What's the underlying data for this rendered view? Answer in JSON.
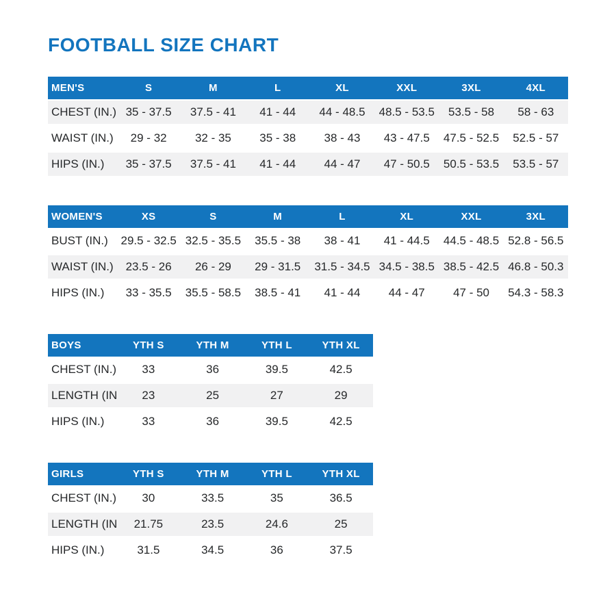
{
  "page": {
    "title": "FOOTBALL SIZE CHART"
  },
  "colors": {
    "accent_blue": "#1375be",
    "stripe_gray": "#f1f1f2",
    "header_text": "#ffffff",
    "body_text": "#26282a"
  },
  "tables": [
    {
      "id": "mens",
      "header": [
        "MEN'S",
        "S",
        "M",
        "L",
        "XL",
        "XXL",
        "3XL",
        "4XL"
      ],
      "rows": [
        {
          "label": "CHEST (IN.)",
          "values": [
            "35 - 37.5",
            "37.5 - 41",
            "41 - 44",
            "44 - 48.5",
            "48.5 - 53.5",
            "53.5 - 58",
            "58 - 63"
          ]
        },
        {
          "label": "WAIST (IN.)",
          "values": [
            "29 - 32",
            "32 - 35",
            "35 - 38",
            "38 - 43",
            "43 - 47.5",
            "47.5 - 52.5",
            "52.5 - 57"
          ]
        },
        {
          "label": "HIPS (IN.)",
          "values": [
            "35 - 37.5",
            "37.5 - 41",
            "41 - 44",
            "44 - 47",
            "47 - 50.5",
            "50.5 - 53.5",
            "53.5 - 57"
          ]
        }
      ]
    },
    {
      "id": "womens",
      "header": [
        "WOMEN'S",
        "XS",
        "S",
        "M",
        "L",
        "XL",
        "XXL",
        "3XL"
      ],
      "rows": [
        {
          "label": "BUST (IN.)",
          "values": [
            "29.5 - 32.5",
            "32.5 - 35.5",
            "35.5 - 38",
            "38 - 41",
            "41 - 44.5",
            "44.5 - 48.5",
            "52.8 - 56.5"
          ]
        },
        {
          "label": "WAIST (IN.)",
          "values": [
            "23.5 - 26",
            "26 - 29",
            "29 - 31.5",
            "31.5 - 34.5",
            "34.5 - 38.5",
            "38.5 - 42.5",
            "46.8 - 50.3"
          ]
        },
        {
          "label": "HIPS (IN.)",
          "values": [
            "33 - 35.5",
            "35.5 - 58.5",
            "38.5 - 41",
            "41 - 44",
            "44 - 47",
            "47 - 50",
            "54.3 - 58.3"
          ]
        }
      ]
    },
    {
      "id": "boys",
      "header": [
        "BOYS",
        "YTH S",
        "YTH M",
        "YTH L",
        "YTH XL"
      ],
      "rows": [
        {
          "label": "CHEST (IN.)",
          "values": [
            "33",
            "36",
            "39.5",
            "42.5"
          ]
        },
        {
          "label": "LENGTH (IN.)",
          "values": [
            "23",
            "25",
            "27",
            "29"
          ]
        },
        {
          "label": "HIPS (IN.)",
          "values": [
            "33",
            "36",
            "39.5",
            "42.5"
          ]
        }
      ]
    },
    {
      "id": "girls",
      "header": [
        "GIRLS",
        "YTH S",
        "YTH M",
        "YTH L",
        "YTH XL"
      ],
      "rows": [
        {
          "label": "CHEST (IN.)",
          "values": [
            "30",
            "33.5",
            "35",
            "36.5"
          ]
        },
        {
          "label": "LENGTH (IN.)",
          "values": [
            "21.75",
            "23.5",
            "24.6",
            "25"
          ]
        },
        {
          "label": "HIPS (IN.)",
          "values": [
            "31.5",
            "34.5",
            "36",
            "37.5"
          ]
        }
      ]
    }
  ]
}
